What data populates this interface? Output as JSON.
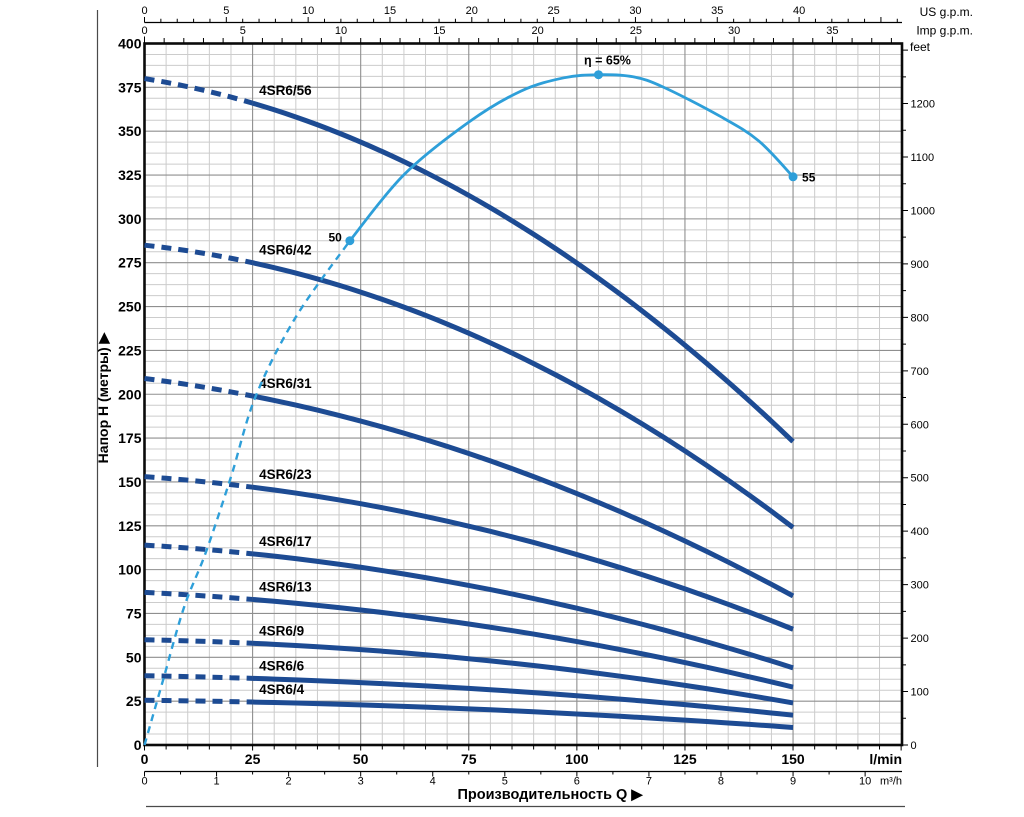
{
  "chart_data": {
    "type": "line",
    "xlabel": "Производительность Q",
    "ylabel": "Напор H (метры)",
    "x_axes": {
      "lmin": {
        "unit_label": "l/min",
        "tick_labels": [
          0,
          25,
          50,
          75,
          100,
          125,
          150
        ],
        "minor_step_lmin": 5,
        "range_lmin": [
          0,
          175.2
        ]
      },
      "m3h": {
        "unit_label": "m³/h",
        "tick_labels": [
          0,
          1,
          2,
          3,
          4,
          5,
          6,
          7,
          8,
          9,
          10
        ],
        "minor_step_unit": 0.5,
        "lmin_per_unit": 16.667
      },
      "us_gpm": {
        "unit_label": "US g.p.m.",
        "tick_labels": [
          0,
          5,
          10,
          15,
          20,
          25,
          30,
          35,
          40
        ],
        "minor_step_unit": 1,
        "lmin_per_unit": 3.785
      },
      "imp_gpm": {
        "unit_label": "Imp g.p.m.",
        "tick_labels": [
          0,
          5,
          10,
          15,
          20,
          25,
          30,
          35
        ],
        "minor_step_unit": 1,
        "lmin_per_unit": 4.546
      }
    },
    "y_axes": {
      "meters": {
        "tick_labels": [
          0,
          25,
          50,
          75,
          100,
          125,
          150,
          175,
          200,
          225,
          250,
          275,
          300,
          325,
          350,
          375,
          400
        ],
        "minor_step_m": 6.25,
        "range_m": [
          0,
          400
        ]
      },
      "feet": {
        "unit_label": "feet",
        "tick_labels": [
          0,
          100,
          200,
          300,
          400,
          500,
          600,
          700,
          800,
          900,
          1000,
          1100,
          1200
        ],
        "minor_step_unit": 50,
        "m_per_unit": 0.3048
      }
    },
    "grid": {
      "minor_x_lmin": 5,
      "major_x_lmin": 25,
      "minor_y_m": 6.25,
      "major_y_m": 25
    },
    "dashed_below_lmin": 25,
    "series": [
      {
        "name": "4SR6/56",
        "head_m": {
          "q0": 380,
          "q25": 366,
          "q150": 173
        }
      },
      {
        "name": "4SR6/42",
        "head_m": {
          "q0": 285,
          "q25": 275,
          "q150": 124
        }
      },
      {
        "name": "4SR6/31",
        "head_m": {
          "q0": 209,
          "q25": 199,
          "q150": 85
        }
      },
      {
        "name": "4SR6/23",
        "head_m": {
          "q0": 153,
          "q25": 147,
          "q150": 66
        }
      },
      {
        "name": "4SR6/17",
        "head_m": {
          "q0": 114,
          "q25": 109,
          "q150": 44
        }
      },
      {
        "name": "4SR6/13",
        "head_m": {
          "q0": 87,
          "q25": 83,
          "q150": 33
        }
      },
      {
        "name": "4SR6/9",
        "head_m": {
          "q0": 60,
          "q25": 58,
          "q150": 24
        }
      },
      {
        "name": "4SR6/6",
        "head_m": {
          "q0": 39.5,
          "q25": 38,
          "q150": 17
        }
      },
      {
        "name": "4SR6/4",
        "head_m": {
          "q0": 25.5,
          "q25": 24.5,
          "q150": 10
        }
      }
    ],
    "efficiency": {
      "pct_scale_m_per_pct": 5.88,
      "dashed_q_eta": [
        [
          0,
          0
        ],
        [
          4.3,
          6.3
        ],
        [
          9.1,
          13.3
        ],
        [
          14.2,
          18.7
        ],
        [
          20,
          26
        ],
        [
          25.7,
          33.8
        ],
        [
          35,
          41.5
        ],
        [
          47.5,
          48.9
        ]
      ],
      "solid_q_eta": [
        [
          47.5,
          48.9
        ],
        [
          60,
          55.3
        ],
        [
          75,
          60.4
        ],
        [
          87,
          63.4
        ],
        [
          97,
          64.7
        ],
        [
          105,
          65
        ],
        [
          113,
          64.8
        ],
        [
          120,
          63.8
        ],
        [
          133,
          61
        ],
        [
          142,
          58.6
        ],
        [
          150,
          55.1
        ]
      ],
      "markers": [
        {
          "q": 47.5,
          "eta": 48.9,
          "label": "50",
          "side": "left"
        },
        {
          "q": 105,
          "eta": 65,
          "label": "η = 65%",
          "side": "top"
        },
        {
          "q": 150,
          "eta": 55.1,
          "label": "55",
          "side": "right"
        }
      ]
    },
    "colors": {
      "curve": "#1d4b93",
      "efficiency": "#2e9fd9",
      "grid_minor": "#cccccc",
      "grid_major": "#8f8f8f",
      "frame": "#0a0a0a",
      "text": "#000000",
      "rule": "#4a4a4a"
    }
  }
}
